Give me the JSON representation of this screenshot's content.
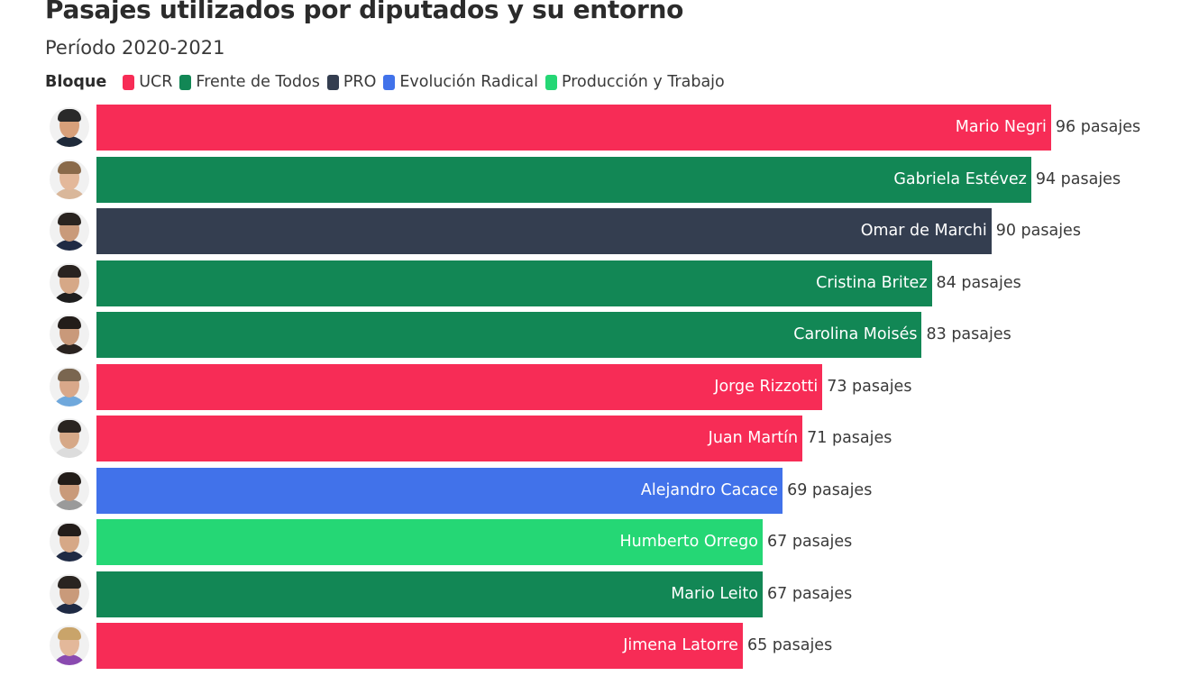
{
  "chart_data": {
    "type": "bar",
    "orientation": "horizontal",
    "title": "Pasajes utilizados por diputados y su entorno",
    "subtitle": "Período 2020-2021",
    "legend": {
      "title": "Bloque",
      "placement": "top-left",
      "entries": [
        {
          "name": "UCR",
          "color": "#F72C56"
        },
        {
          "name": "Frente de Todos",
          "color": "#128755"
        },
        {
          "name": "PRO",
          "color": "#343E50"
        },
        {
          "name": "Evolución Radical",
          "color": "#4172EA"
        },
        {
          "name": "Producción y Trabajo",
          "color": "#25D775"
        }
      ]
    },
    "value_suffix": "pasajes",
    "xlim": [
      0,
      96
    ],
    "grid": false,
    "bars": [
      {
        "name": "Mario Negri",
        "value": 96,
        "bloque": "UCR",
        "value_label": "96 pasajes",
        "avatar": {
          "hair": "#2a2a2a",
          "body": "#1f2a3a",
          "skin": "#d8a07a"
        }
      },
      {
        "name": "Gabriela Estévez",
        "value": 94,
        "bloque": "Frente de Todos",
        "value_label": "94 pasajes",
        "avatar": {
          "hair": "#8a6a4a",
          "body": "#d9b79a",
          "skin": "#e3b89a"
        }
      },
      {
        "name": "Omar de Marchi",
        "value": 90,
        "bloque": "PRO",
        "value_label": "90 pasajes",
        "avatar": {
          "hair": "#2a2420",
          "body": "#1f2a44",
          "skin": "#c99a7a"
        }
      },
      {
        "name": "Cristina Britez",
        "value": 84,
        "bloque": "Frente de Todos",
        "value_label": "84 pasajes",
        "avatar": {
          "hair": "#2a2320",
          "body": "#1e1e1e",
          "skin": "#d6a887"
        }
      },
      {
        "name": "Carolina Moisés",
        "value": 83,
        "bloque": "Frente de Todos",
        "value_label": "83 pasajes",
        "avatar": {
          "hair": "#231d1a",
          "body": "#2a2320",
          "skin": "#c9997a"
        }
      },
      {
        "name": "Jorge Rizzotti",
        "value": 73,
        "bloque": "UCR",
        "value_label": "73 pasajes",
        "avatar": {
          "hair": "#7a6650",
          "body": "#6fa8dc",
          "skin": "#d9a88a"
        }
      },
      {
        "name": "Juan Martín",
        "value": 71,
        "bloque": "UCR",
        "value_label": "71 pasajes",
        "avatar": {
          "hair": "#2a2420",
          "body": "#dcdcdc",
          "skin": "#d6a887"
        }
      },
      {
        "name": "Alejandro Cacace",
        "value": 69,
        "bloque": "Evolución Radical",
        "value_label": "69 pasajes",
        "avatar": {
          "hair": "#221c18",
          "body": "#9a9a9a",
          "skin": "#c99a7a"
        }
      },
      {
        "name": "Humberto Orrego",
        "value": 67,
        "bloque": "Producción y Trabajo",
        "value_label": "67 pasajes",
        "avatar": {
          "hair": "#231d1a",
          "body": "#1f2a44",
          "skin": "#d6a887"
        }
      },
      {
        "name": "Mario Leito",
        "value": 67,
        "bloque": "Frente de Todos",
        "value_label": "67 pasajes",
        "avatar": {
          "hair": "#2a2420",
          "body": "#1f2a44",
          "skin": "#c99a7a"
        }
      },
      {
        "name": "Jimena Latorre",
        "value": 65,
        "bloque": "UCR",
        "value_label": "65 pasajes",
        "avatar": {
          "hair": "#c9a46a",
          "body": "#8a4ab0",
          "skin": "#e3b89a"
        }
      }
    ]
  }
}
